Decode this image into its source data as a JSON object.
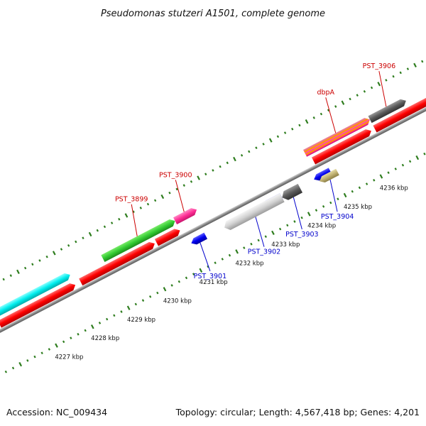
{
  "title": "Pseudomonas stutzeri A1501, complete genome",
  "footer": {
    "accession": "Accession: NC_009434",
    "summary": "Topology: circular; Length: 4,567,418 bp; Genes: 4,201"
  },
  "tick_labels": [
    "4227 kbp",
    "4228 kbp",
    "4229 kbp",
    "4230 kbp",
    "4231 kbp",
    "4232 kbp",
    "4233 kbp",
    "4234 kbp",
    "4235 kbp",
    "4236 kbp"
  ],
  "colors": {
    "forward_cds": "#ff0000",
    "reverse_cds": "#0000ee",
    "backbone": "#8a8a8a",
    "tick": "#2e7d1e",
    "forward_label": "#cc0000",
    "reverse_label": "#0000cc"
  },
  "genes": [
    {
      "label": "PST_3899",
      "strand": "forward",
      "color": "#33cc33",
      "label_color": "#cc0000",
      "start": 4229.0,
      "end": 4231.0
    },
    {
      "label": "PST_3900",
      "strand": "forward",
      "color": "#ff3399",
      "label_color": "#cc0000",
      "start": 4231.0,
      "end": 4231.6
    },
    {
      "label": "dbpA",
      "strand": "forward",
      "color": "#ff8c00",
      "label_color": "#cc0000",
      "start": 4234.6,
      "end": 4236.4
    },
    {
      "label": "PST_3906",
      "strand": "forward",
      "color": "#555555",
      "label_color": "#cc0000",
      "start": 4236.4,
      "end": 4237.4
    },
    {
      "label": "PST_3901",
      "strand": "reverse",
      "color": "#0000ee",
      "label_color": "#0000cc",
      "start": 4231.1,
      "end": 4231.5
    },
    {
      "label": "PST_3902",
      "strand": "reverse",
      "color": "#cccccc",
      "label_color": "#0000cc",
      "start": 4232.0,
      "end": 4233.6
    },
    {
      "label": "PST_3903",
      "strand": "reverse",
      "color": "#666666",
      "label_color": "#0000cc",
      "start": 4233.6,
      "end": 4234.1
    },
    {
      "label": "PST_3904",
      "strand": "reverse",
      "color": "#bfb070",
      "label_color": "#0000cc",
      "start": 4234.6,
      "end": 4235.1
    }
  ]
}
